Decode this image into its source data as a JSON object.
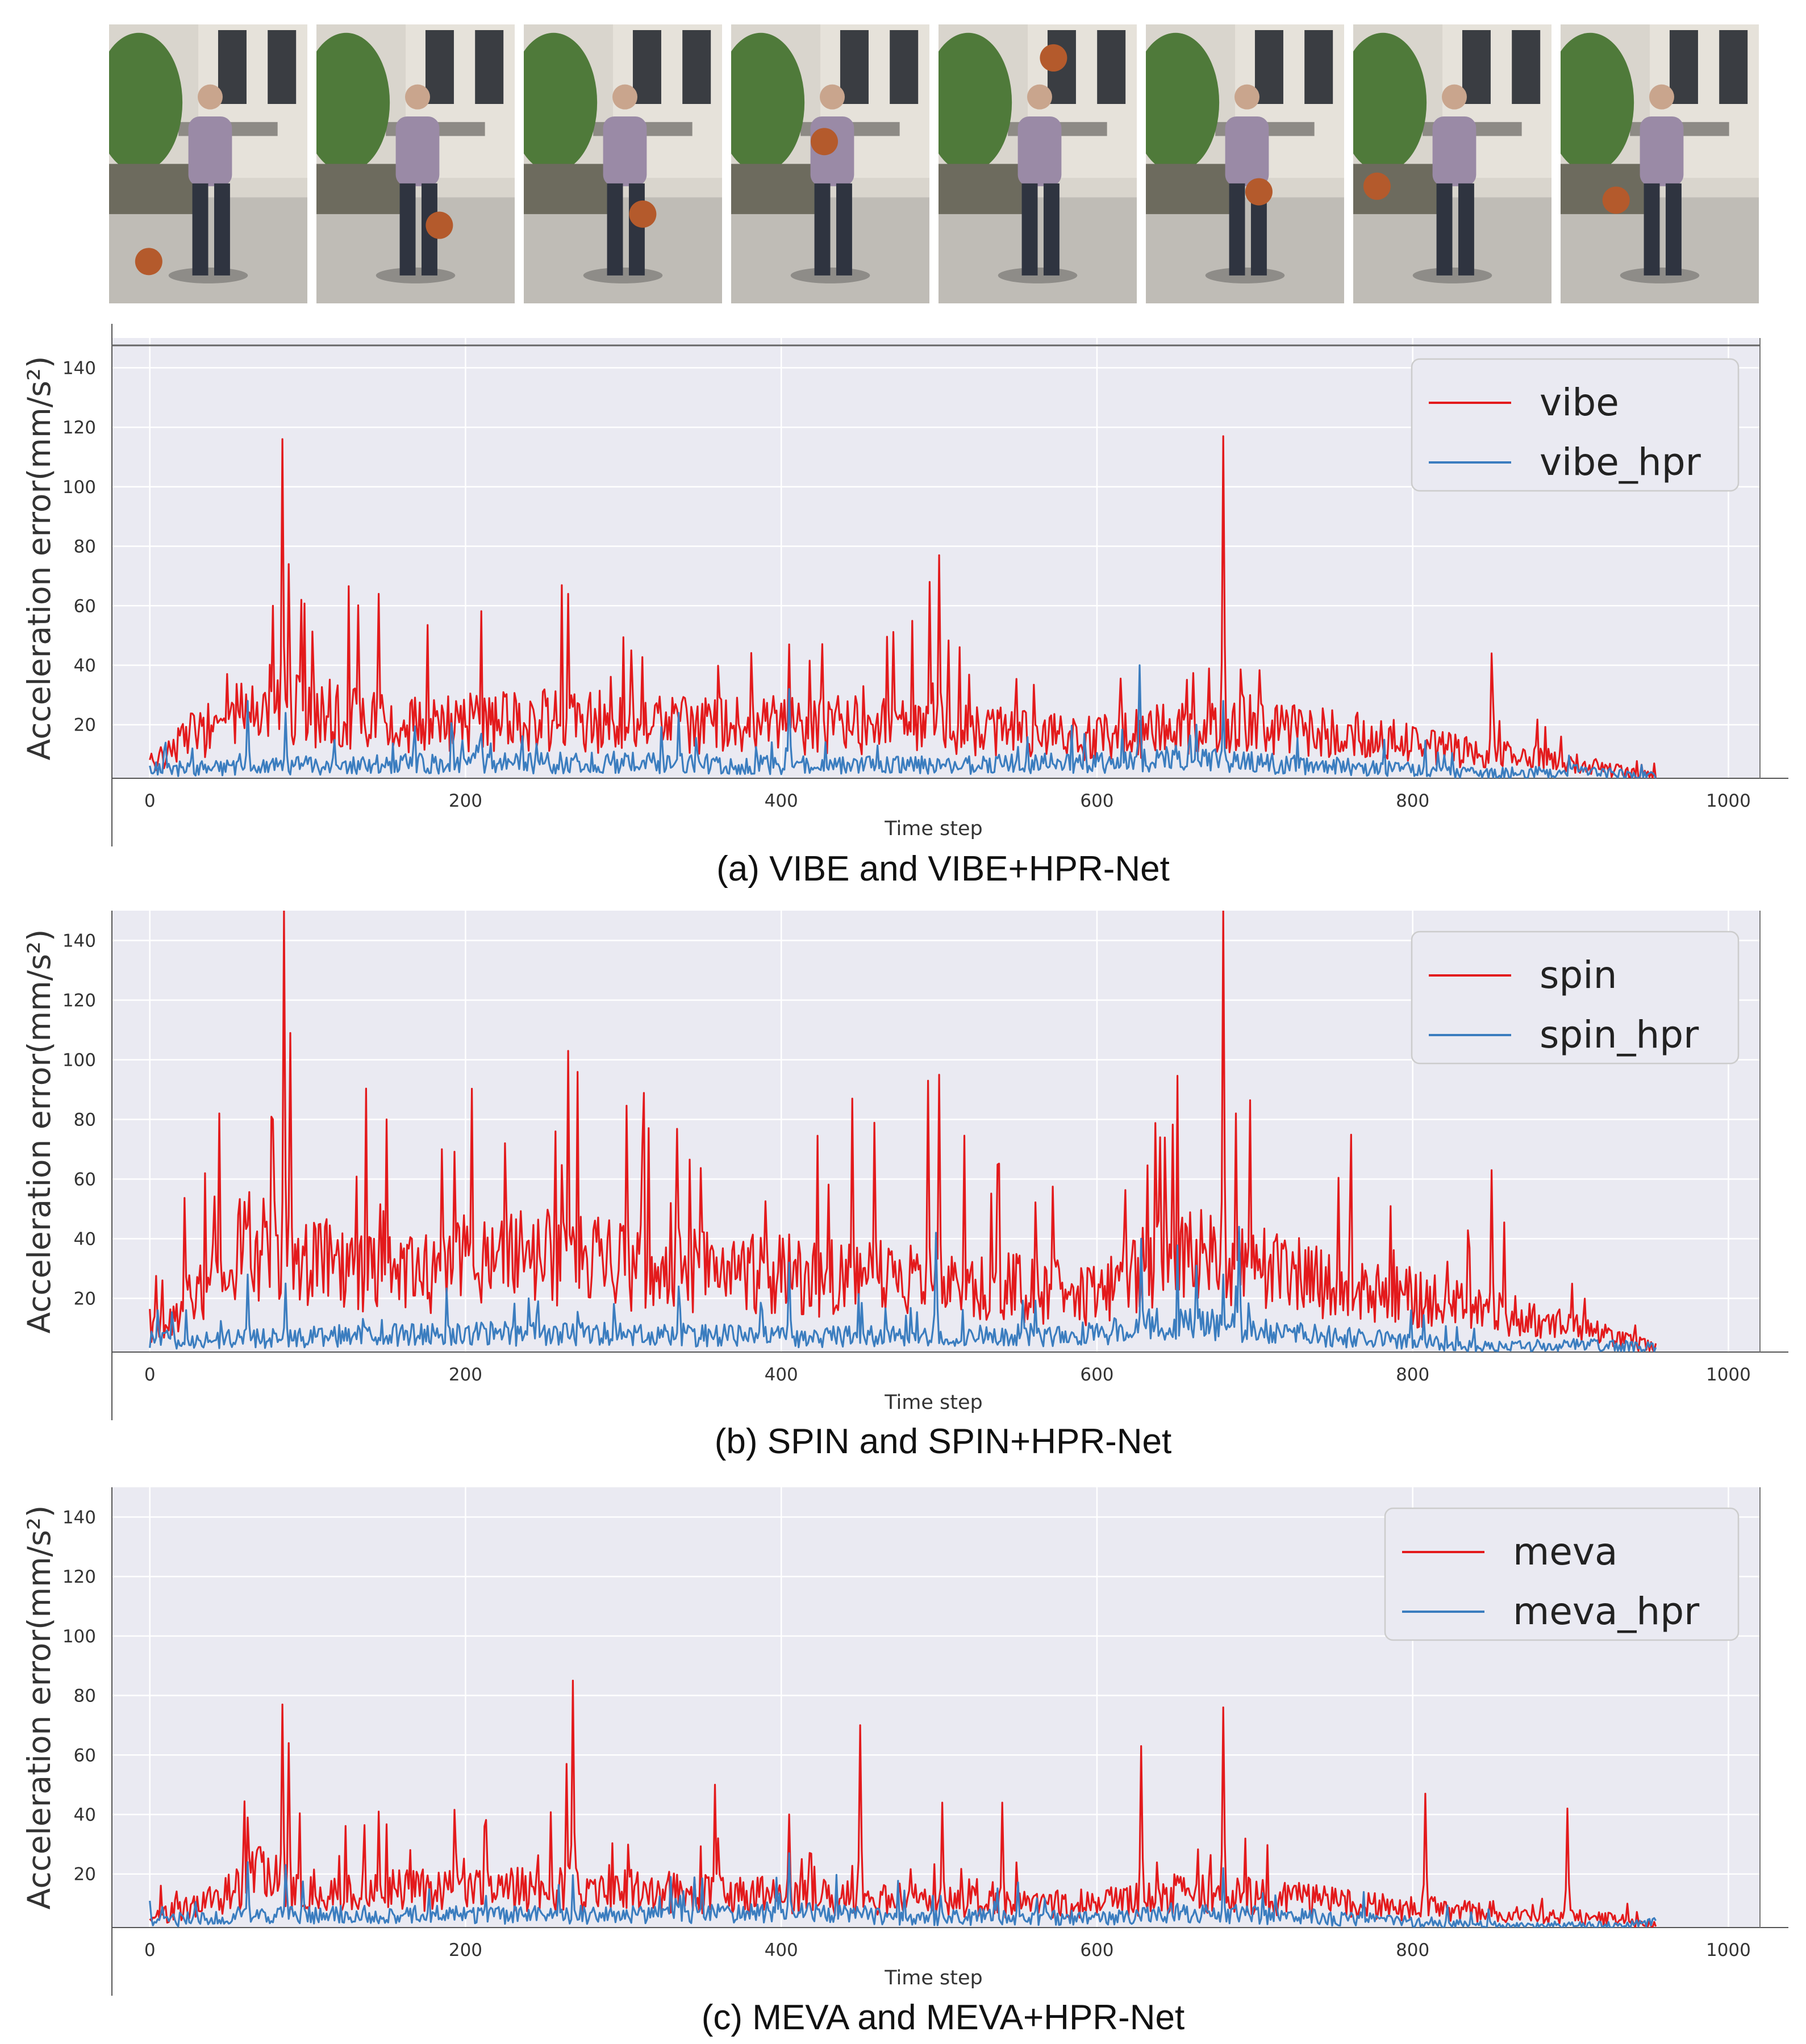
{
  "frames_strip": {
    "count": 8,
    "ball_positions": [
      [
        0.2,
        0.85
      ],
      [
        0.62,
        0.72
      ],
      [
        0.6,
        0.68
      ],
      [
        0.47,
        0.42
      ],
      [
        0.58,
        0.12
      ],
      [
        0.57,
        0.6
      ],
      [
        0.12,
        0.58
      ],
      [
        0.28,
        0.63
      ]
    ]
  },
  "colors": {
    "plot_background": "#eaeaf2",
    "grid": "#ffffff",
    "red_series": "#e31a1c",
    "blue_series": "#3b7dbf",
    "legend_background": "#eaeaf2",
    "legend_border": "#cccccc"
  },
  "chart_data": [
    {
      "type": "line",
      "caption": "(a) VIBE and VIBE+HPR-Net",
      "xlabel": "Time step",
      "ylabel": "Acceleration error(mm/s²)",
      "xlim": [
        -24,
        1020
      ],
      "ylim": [
        2,
        150
      ],
      "xticks": [
        0,
        200,
        400,
        600,
        800,
        1000
      ],
      "yticks": [
        20,
        40,
        60,
        80,
        100,
        120,
        140
      ],
      "grid": true,
      "legend_position": "top-right",
      "n_points": 955,
      "series": [
        {
          "name": "vibe",
          "color": "#e31a1c",
          "base_profile": [
            [
              0,
              8
            ],
            [
              20,
              16
            ],
            [
              60,
              27
            ],
            [
              100,
              28
            ],
            [
              150,
              22
            ],
            [
              250,
              24
            ],
            [
              350,
              22
            ],
            [
              450,
              22
            ],
            [
              550,
              19
            ],
            [
              600,
              17
            ],
            [
              650,
              21
            ],
            [
              700,
              23
            ],
            [
              780,
              17
            ],
            [
              820,
              13
            ],
            [
              860,
              11
            ],
            [
              900,
              8
            ],
            [
              930,
              5
            ],
            [
              955,
              3
            ]
          ],
          "peaks": [
            [
              84,
              116
            ],
            [
              88,
              74
            ],
            [
              78,
              60
            ],
            [
              96,
              62
            ],
            [
              265,
              64
            ],
            [
              145,
              64
            ],
            [
              500,
              77
            ],
            [
              494,
              68
            ],
            [
              680,
              117
            ],
            [
              625,
              25
            ],
            [
              850,
              44
            ],
            [
              405,
              47
            ],
            [
              305,
              45
            ]
          ]
        },
        {
          "name": "vibe_hpr",
          "color": "#3b7dbf",
          "base_profile": [
            [
              0,
              6
            ],
            [
              60,
              6
            ],
            [
              100,
              7
            ],
            [
              200,
              8
            ],
            [
              300,
              8
            ],
            [
              400,
              7
            ],
            [
              500,
              7
            ],
            [
              600,
              8
            ],
            [
              650,
              10
            ],
            [
              700,
              8
            ],
            [
              780,
              6
            ],
            [
              850,
              4
            ],
            [
              900,
              5
            ],
            [
              955,
              3
            ]
          ],
          "peaks": [
            [
              62,
              28
            ],
            [
              86,
              24
            ],
            [
              405,
              32
            ],
            [
              627,
              40
            ],
            [
              663,
              20
            ],
            [
              680,
              28
            ],
            [
              210,
              17
            ],
            [
              335,
              24
            ],
            [
              10,
              14
            ]
          ]
        }
      ]
    },
    {
      "type": "line",
      "caption": "(b) SPIN and SPIN+HPR-Net",
      "xlabel": "Time step",
      "ylabel": "Acceleration error(mm/s²)",
      "xlim": [
        -24,
        1020
      ],
      "ylim": [
        2,
        150
      ],
      "xticks": [
        0,
        200,
        400,
        600,
        800,
        1000
      ],
      "yticks": [
        20,
        40,
        60,
        80,
        100,
        120,
        140
      ],
      "grid": true,
      "legend_position": "top-right",
      "n_points": 955,
      "series": [
        {
          "name": "spin",
          "color": "#e31a1c",
          "base_profile": [
            [
              0,
              10
            ],
            [
              20,
              20
            ],
            [
              60,
              42
            ],
            [
              100,
              36
            ],
            [
              150,
              30
            ],
            [
              250,
              38
            ],
            [
              350,
              32
            ],
            [
              450,
              30
            ],
            [
              550,
              26
            ],
            [
              600,
              24
            ],
            [
              650,
              40
            ],
            [
              700,
              34
            ],
            [
              780,
              25
            ],
            [
              820,
              20
            ],
            [
              860,
              16
            ],
            [
              900,
              12
            ],
            [
              930,
              7
            ],
            [
              955,
              4
            ]
          ],
          "peaks": [
            [
              44,
              82
            ],
            [
              85,
              150
            ],
            [
              89,
              109
            ],
            [
              78,
              80
            ],
            [
              265,
              103
            ],
            [
              150,
              80
            ],
            [
              445,
              87
            ],
            [
              493,
              93
            ],
            [
              500,
              95
            ],
            [
              680,
              150
            ],
            [
              688,
              82
            ],
            [
              640,
              74
            ],
            [
              850,
              63
            ],
            [
              185,
              70
            ],
            [
              225,
              72
            ]
          ]
        },
        {
          "name": "spin_hpr",
          "color": "#3b7dbf",
          "base_profile": [
            [
              0,
              7
            ],
            [
              60,
              7
            ],
            [
              100,
              8
            ],
            [
              200,
              9
            ],
            [
              300,
              9
            ],
            [
              400,
              8
            ],
            [
              500,
              8
            ],
            [
              600,
              9
            ],
            [
              650,
              14
            ],
            [
              700,
              10
            ],
            [
              780,
              7
            ],
            [
              850,
              4
            ],
            [
              900,
              5
            ],
            [
              955,
              4
            ]
          ],
          "peaks": [
            [
              62,
              28
            ],
            [
              86,
              25
            ],
            [
              405,
              32
            ],
            [
              498,
              42
            ],
            [
              628,
              40
            ],
            [
              680,
              28
            ],
            [
              690,
              44
            ],
            [
              240,
              20
            ],
            [
              335,
              24
            ],
            [
              5,
              16
            ]
          ]
        }
      ]
    },
    {
      "type": "line",
      "caption": "(c) MEVA and MEVA+HPR-Net",
      "xlabel": "Time step",
      "ylabel": "Acceleration error(mm/s²)",
      "xlim": [
        -24,
        1020
      ],
      "ylim": [
        2,
        150
      ],
      "xticks": [
        0,
        200,
        400,
        600,
        800,
        1000
      ],
      "yticks": [
        20,
        40,
        60,
        80,
        100,
        120,
        140
      ],
      "grid": true,
      "legend_position": "top-right",
      "n_points": 955,
      "series": [
        {
          "name": "meva",
          "color": "#e31a1c",
          "base_profile": [
            [
              0,
              6
            ],
            [
              40,
              12
            ],
            [
              70,
              22
            ],
            [
              100,
              15
            ],
            [
              200,
              17
            ],
            [
              300,
              16
            ],
            [
              400,
              14
            ],
            [
              500,
              12
            ],
            [
              600,
              11
            ],
            [
              650,
              15
            ],
            [
              700,
              14
            ],
            [
              780,
              10
            ],
            [
              860,
              8
            ],
            [
              930,
              5
            ],
            [
              955,
              3
            ]
          ],
          "peaks": [
            [
              84,
              77
            ],
            [
              88,
              64
            ],
            [
              62,
              39
            ],
            [
              268,
              85
            ],
            [
              264,
              57
            ],
            [
              358,
              50
            ],
            [
              450,
              70
            ],
            [
              502,
              44
            ],
            [
              540,
              44
            ],
            [
              628,
              63
            ],
            [
              680,
              76
            ],
            [
              808,
              47
            ],
            [
              898,
              42
            ],
            [
              145,
              41
            ],
            [
              405,
              40
            ]
          ]
        },
        {
          "name": "meva_hpr",
          "color": "#3b7dbf",
          "base_profile": [
            [
              0,
              5
            ],
            [
              60,
              6
            ],
            [
              100,
              7
            ],
            [
              200,
              7
            ],
            [
              300,
              7
            ],
            [
              400,
              8
            ],
            [
              500,
              6
            ],
            [
              600,
              6
            ],
            [
              650,
              8
            ],
            [
              700,
              7
            ],
            [
              780,
              5
            ],
            [
              850,
              3
            ],
            [
              930,
              3
            ],
            [
              955,
              4
            ]
          ],
          "peaks": [
            [
              62,
              24
            ],
            [
              86,
              23
            ],
            [
              405,
              27
            ],
            [
              680,
              22
            ],
            [
              330,
              19
            ],
            [
              955,
              10
            ],
            [
              0,
              11
            ]
          ]
        }
      ]
    }
  ]
}
